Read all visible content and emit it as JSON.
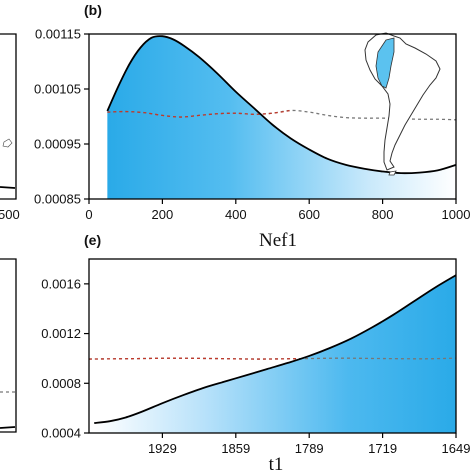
{
  "chart_data": [
    {
      "panel": "(b)",
      "type": "area",
      "xlabel": "Nef1",
      "ylabel": "",
      "xlim": [
        0,
        1000
      ],
      "ylim": [
        0.00085,
        0.00115
      ],
      "xticks": [
        "0",
        "200",
        "400",
        "600",
        "800",
        "1000"
      ],
      "yticks": [
        "0.00115",
        "0.00105",
        "0.00095",
        "0.00085"
      ],
      "grid": false,
      "series": [
        {
          "style": "solid-black-filled-blue",
          "x": [
            50,
            80,
            110,
            140,
            170,
            200,
            230,
            260,
            300,
            350,
            400,
            450,
            500,
            550,
            600,
            650,
            700,
            750,
            800,
            850,
            900,
            950,
            1000
          ],
          "y": [
            0.00101,
            0.001055,
            0.001095,
            0.001125,
            0.001143,
            0.001146,
            0.00114,
            0.001128,
            0.001108,
            0.001078,
            0.001045,
            0.001015,
            0.000985,
            0.00096,
            0.00094,
            0.000923,
            0.000912,
            0.000905,
            0.0009,
            0.000897,
            0.000898,
            0.000902,
            0.000912
          ]
        },
        {
          "style": "dashed-grey",
          "x": [
            50,
            100,
            150,
            200,
            250,
            300,
            350,
            400,
            450,
            500,
            550,
            600,
            650,
            700,
            750,
            800,
            850,
            900,
            950,
            1000
          ],
          "y": [
            0.001008,
            0.001009,
            0.001007,
            0.001002,
            0.000999,
            0.001002,
            0.001005,
            0.001006,
            0.001004,
            0.001006,
            0.001011,
            0.001008,
            0.001002,
            0.000998,
            0.000997,
            0.000997,
            0.000996,
            0.000995,
            0.000995,
            0.000994
          ]
        }
      ],
      "fill_x_range": [
        50,
        1000
      ],
      "inset": "map-south-america-highlight"
    },
    {
      "panel": "(e)",
      "type": "area",
      "xlabel": "t1",
      "ylabel": "",
      "xlim": [
        1999,
        1649
      ],
      "ylim": [
        0.0004,
        0.0018
      ],
      "xticks": [
        "1929",
        "1859",
        "1789",
        "1719",
        "1649"
      ],
      "yticks": [
        "0.0016",
        "0.0012",
        "0.0008",
        "0.0004"
      ],
      "grid": false,
      "series": [
        {
          "style": "solid-black-filled-blue",
          "x": [
            1994,
            1979,
            1964,
            1949,
            1929,
            1909,
            1889,
            1869,
            1849,
            1829,
            1809,
            1789,
            1769,
            1749,
            1729,
            1709,
            1689,
            1669,
            1649
          ],
          "y": [
            0.00048,
            0.000495,
            0.000525,
            0.00057,
            0.00064,
            0.000705,
            0.000765,
            0.000815,
            0.000865,
            0.000915,
            0.000965,
            0.00102,
            0.001085,
            0.00116,
            0.00125,
            0.00135,
            0.00146,
            0.00157,
            0.00167
          ]
        },
        {
          "style": "dashed-grey",
          "x": [
            1999,
            1959,
            1919,
            1879,
            1839,
            1799,
            1759,
            1719,
            1679,
            1649
          ],
          "y": [
            0.000995,
            0.000998,
            0.001002,
            0.000999,
            0.000995,
            0.000998,
            0.001002,
            0.000999,
            0.000997,
            0.001002
          ]
        }
      ]
    }
  ],
  "left_fragment": {
    "top_xtick": "500"
  },
  "colors": {
    "fill_strong": "#2aaae8",
    "fill_fade": "#ffffff",
    "curve": "#000000",
    "dashed": "#777777",
    "dashed_mid": "#c0392b",
    "map_fill": "#ffffff",
    "map_highlight": "#5bc2ef"
  }
}
